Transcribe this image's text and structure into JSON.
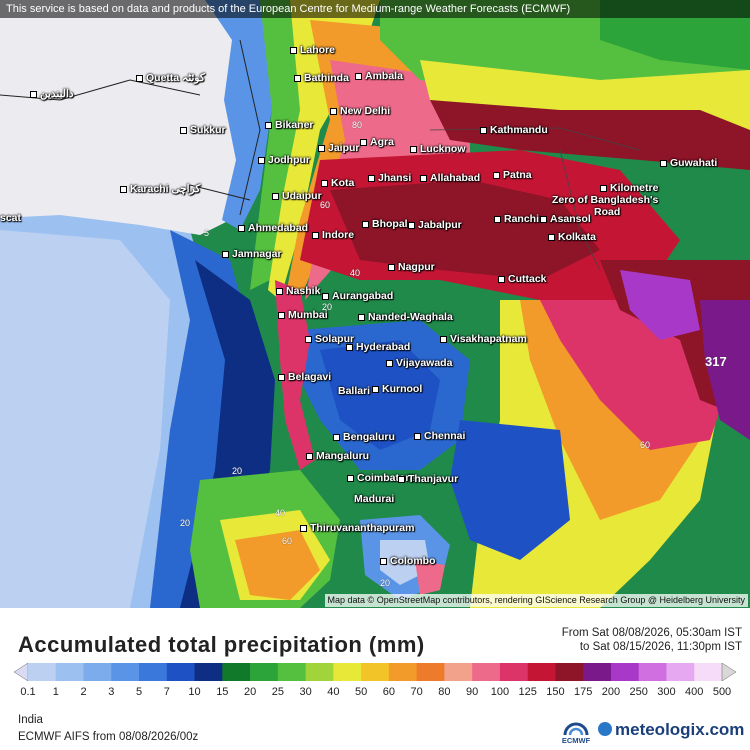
{
  "header": {
    "notice": "This service is based on data and products of the European Centre for Medium-range Weather Forecasts (ECMWF)"
  },
  "map": {
    "attribution": "Map data © OpenStreetMap contributors, rendering GIScience Research Group @ Heidelberg University",
    "cities": [
      {
        "name": "Lahore"
      },
      {
        "name": "Quetta كوئٹہ"
      },
      {
        "name": "Bathinda"
      },
      {
        "name": "Ambala"
      },
      {
        "name": "دالبندین"
      },
      {
        "name": "New Delhi"
      },
      {
        "name": "Kathmandu"
      },
      {
        "name": "Sukkur"
      },
      {
        "name": "Bikaner"
      },
      {
        "name": "Jaipur"
      },
      {
        "name": "Agra"
      },
      {
        "name": "Lucknow"
      },
      {
        "name": "Guwahati"
      },
      {
        "name": "Jodhpur"
      },
      {
        "name": "Jhansi"
      },
      {
        "name": "Allahabad"
      },
      {
        "name": "Patna"
      },
      {
        "name": "Karachi کراچی"
      },
      {
        "name": "Kota"
      },
      {
        "name": "Udaipur"
      },
      {
        "name": "Kilometre"
      },
      {
        "name": "Zero of Bangladesh's"
      },
      {
        "name": "Road"
      },
      {
        "name": "Ahmedabad"
      },
      {
        "name": "Indore"
      },
      {
        "name": "Bhopal"
      },
      {
        "name": "Jabalpur"
      },
      {
        "name": "Ranchi"
      },
      {
        "name": "Asansol"
      },
      {
        "name": "Kolkata"
      },
      {
        "name": "Jamnagar"
      },
      {
        "name": "Nagpur"
      },
      {
        "name": "Cuttack"
      },
      {
        "name": "Nashik"
      },
      {
        "name": "Aurangabad"
      },
      {
        "name": "Mumbai"
      },
      {
        "name": "Nanded-Waghala"
      },
      {
        "name": "Visakhapatnam"
      },
      {
        "name": "Solapur"
      },
      {
        "name": "Hyderabad"
      },
      {
        "name": "Vijayawada"
      },
      {
        "name": "Belagavi"
      },
      {
        "name": "Ballari"
      },
      {
        "name": "Kurnool"
      },
      {
        "name": "Bengaluru"
      },
      {
        "name": "Chennai"
      },
      {
        "name": "Mangaluru"
      },
      {
        "name": "Coimbatore"
      },
      {
        "name": "Thanjavur"
      },
      {
        "name": "Madurai"
      },
      {
        "name": "Thiruvananthapuram"
      },
      {
        "name": "Colombo"
      },
      {
        "name": "scat"
      }
    ],
    "contour_labels": [
      "5",
      "20",
      "20",
      "40",
      "60",
      "60",
      "20",
      "20",
      "40",
      "60",
      "80",
      "317"
    ]
  },
  "footer": {
    "title": "Accumulated total precipitation (mm)",
    "from_line": "From Sat 08/08/2026, 05:30am IST",
    "to_line": "to Sat 08/15/2026, 11:30pm IST",
    "region": "India",
    "model": "ECMWF AIFS from 08/08/2026/00z",
    "ecmwf_label": "ECMWF",
    "brand": "meteologix.com"
  },
  "colorbar": {
    "labels": [
      "0.1",
      "1",
      "2",
      "3",
      "5",
      "7",
      "10",
      "15",
      "20",
      "25",
      "30",
      "40",
      "50",
      "60",
      "70",
      "80",
      "90",
      "100",
      "125",
      "150",
      "175",
      "200",
      "250",
      "300",
      "400",
      "500"
    ],
    "colors": [
      "#d8dbf2",
      "#bcd0f2",
      "#9cc0f0",
      "#7cacec",
      "#5a94e6",
      "#3a78dc",
      "#1e52c4",
      "#0e2e84",
      "#117a2a",
      "#2da43a",
      "#55c040",
      "#a0d43a",
      "#e8e838",
      "#f2c428",
      "#f29a2a",
      "#ee7a2c",
      "#f2a28a",
      "#ee6a8a",
      "#dc3468",
      "#c41634",
      "#8e1428",
      "#7a1a8a",
      "#a838c8",
      "#d070e0",
      "#e6a8f0",
      "#f6dcf8",
      "#d8d8d8"
    ]
  }
}
